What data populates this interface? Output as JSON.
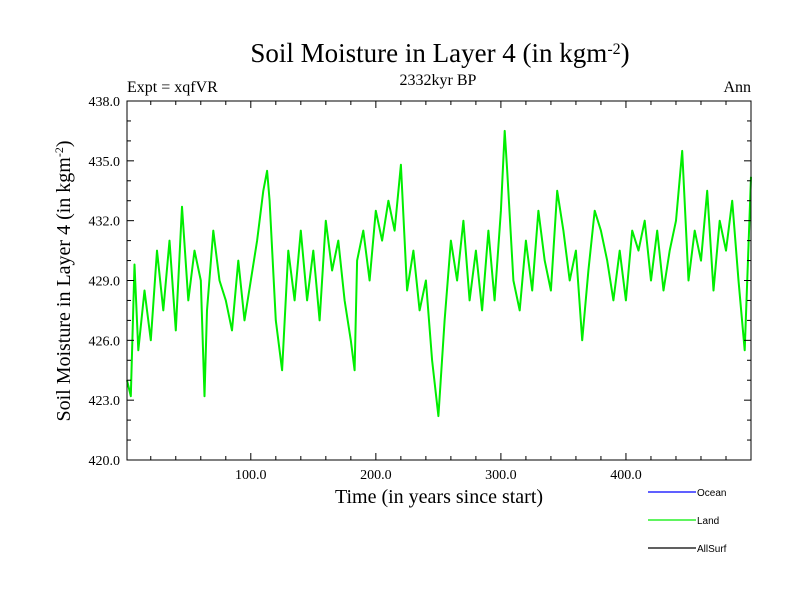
{
  "chart_data": {
    "type": "line",
    "title": "Soil Moisture in Layer 4 (in kgm",
    "title_sup": "-2",
    "title_close": ")",
    "subtitle": "2332kyr BP",
    "left_label": "Expt = xqfVR",
    "right_label": "Ann",
    "xlabel": "Time (in years since start)",
    "ylabel": "Soil Moisture in Layer 4 (in kgm",
    "ylabel_sup": "-2",
    "ylabel_close": ")",
    "xlim": [
      1,
      500
    ],
    "ylim": [
      420,
      438
    ],
    "xticks": [
      100,
      200,
      300,
      400
    ],
    "xtick_labels": [
      "100.0",
      "200.0",
      "300.0",
      "400.0"
    ],
    "yticks": [
      420,
      423,
      426,
      429,
      432,
      435,
      438
    ],
    "ytick_labels": [
      "420.0",
      "423.0",
      "426.0",
      "429.0",
      "432.0",
      "435.0",
      "438.0"
    ],
    "legend": [
      {
        "name": "Ocean",
        "color": "#0000ff"
      },
      {
        "name": "Land",
        "color": "#00ee00"
      },
      {
        "name": "AllSurf",
        "color": "#000000"
      }
    ],
    "series": [
      {
        "name": "Land",
        "color": "#00ee00",
        "x": [
          1,
          4,
          7,
          10,
          15,
          20,
          25,
          30,
          35,
          40,
          45,
          50,
          55,
          60,
          63,
          65,
          70,
          75,
          80,
          85,
          90,
          95,
          100,
          105,
          110,
          113,
          115,
          120,
          125,
          130,
          135,
          140,
          145,
          150,
          155,
          160,
          165,
          170,
          175,
          180,
          183,
          185,
          190,
          195,
          200,
          205,
          210,
          215,
          220,
          225,
          230,
          235,
          240,
          245,
          250,
          255,
          260,
          265,
          270,
          275,
          280,
          285,
          290,
          295,
          300,
          303,
          305,
          310,
          315,
          320,
          325,
          330,
          335,
          340,
          345,
          350,
          355,
          360,
          365,
          370,
          375,
          380,
          385,
          390,
          395,
          400,
          405,
          410,
          415,
          420,
          425,
          430,
          435,
          440,
          445,
          450,
          455,
          460,
          465,
          470,
          475,
          480,
          485,
          490,
          495,
          500
        ],
        "y": [
          424,
          423.2,
          429.8,
          425.5,
          428.5,
          426,
          430.5,
          427.5,
          431,
          426.5,
          432.7,
          428,
          430.5,
          429,
          423.2,
          427.5,
          431.5,
          429,
          428,
          426.5,
          430,
          427,
          429,
          431,
          433.5,
          434.5,
          433,
          427,
          424.5,
          430.5,
          428,
          431.5,
          428,
          430.5,
          427,
          432,
          429.5,
          431,
          428,
          426,
          424.5,
          430,
          431.5,
          429,
          432.5,
          431,
          433,
          431.5,
          434.8,
          428.5,
          430.5,
          427.5,
          429,
          425,
          422.2,
          427,
          431,
          429,
          432,
          428,
          430.5,
          427.5,
          431.5,
          428,
          432.5,
          436.5,
          434.5,
          429,
          427.5,
          431,
          428.5,
          432.5,
          430,
          428.5,
          433.5,
          431.5,
          429,
          430.5,
          426,
          429.5,
          432.5,
          431.5,
          430,
          428,
          430.5,
          428,
          431.5,
          430.5,
          432,
          429,
          431.5,
          428.5,
          430.5,
          432,
          435.5,
          429,
          431.5,
          430,
          433.5,
          428.5,
          432,
          430.5,
          433,
          429,
          425.5,
          434.2
        ]
      },
      {
        "name": "Ocean",
        "color": "#0000ff",
        "x": [],
        "y": []
      },
      {
        "name": "AllSurf",
        "color": "#000000",
        "x": [],
        "y": []
      }
    ]
  }
}
